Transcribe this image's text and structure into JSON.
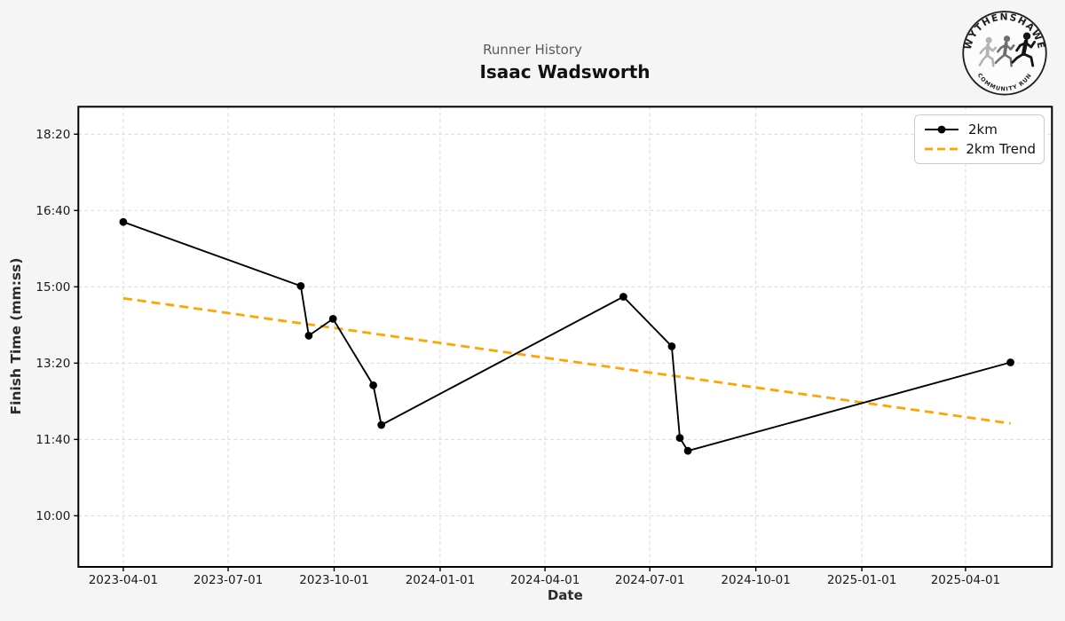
{
  "header": {
    "subtitle": "Runner History",
    "title": "Isaac Wadsworth"
  },
  "logo": {
    "top_text": "WYTHENSHAWE",
    "bottom_text": "COMMUNITY RUN"
  },
  "legend": {
    "items": [
      {
        "label": "2km",
        "swatch": "solid-line-with-marker",
        "color": "#000000"
      },
      {
        "label": "2km Trend",
        "swatch": "dashed-line",
        "color": "#FFA500"
      }
    ]
  },
  "colors": {
    "figure_bg": "#f5f5f5",
    "plot_bg": "#ffffff",
    "gridline": "#d9d9d9",
    "spine": "#000000",
    "series": "#000000",
    "trend": "#FFA500",
    "subtitle_text": "#595959",
    "tick_text": "#1a1a1a"
  },
  "chart_data": {
    "type": "line",
    "title": "Isaac Wadsworth",
    "subtitle": "Runner History",
    "xlabel": "Date",
    "ylabel": "Finish Time (mm:ss)",
    "grid": "dashed, on",
    "legend_position": "upper right",
    "x_ticks": [
      "2023-04-01",
      "2023-07-01",
      "2023-10-01",
      "2024-01-01",
      "2024-04-01",
      "2024-07-01",
      "2024-10-01",
      "2025-01-01",
      "2025-04-01"
    ],
    "y_ticks": [
      "18:20",
      "16:40",
      "15:00",
      "13:20",
      "11:40",
      "10:00"
    ],
    "xlim": [
      "2023-02-21",
      "2025-06-15"
    ],
    "ylim_seconds": [
      533,
      1136
    ],
    "series": [
      {
        "name": "2km",
        "color": "#000000",
        "marker": "circle",
        "points": [
          {
            "date": "2023-04-01",
            "time": "16:25"
          },
          {
            "date": "2023-09-02",
            "time": "15:01"
          },
          {
            "date": "2023-09-09",
            "time": "13:56"
          },
          {
            "date": "2023-09-30",
            "time": "14:18"
          },
          {
            "date": "2023-11-04",
            "time": "12:51"
          },
          {
            "date": "2023-11-11",
            "time": "11:59"
          },
          {
            "date": "2024-06-08",
            "time": "14:47"
          },
          {
            "date": "2024-07-20",
            "time": "13:42"
          },
          {
            "date": "2024-07-27",
            "time": "11:42"
          },
          {
            "date": "2024-08-03",
            "time": "11:25"
          },
          {
            "date": "2025-05-10",
            "time": "13:21"
          }
        ]
      }
    ],
    "trend": {
      "name": "2km Trend",
      "color": "#FFA500",
      "style": "dashed",
      "start": {
        "date": "2023-04-01",
        "time": "14:45"
      },
      "end": {
        "date": "2025-05-10",
        "time": "12:01"
      }
    }
  }
}
